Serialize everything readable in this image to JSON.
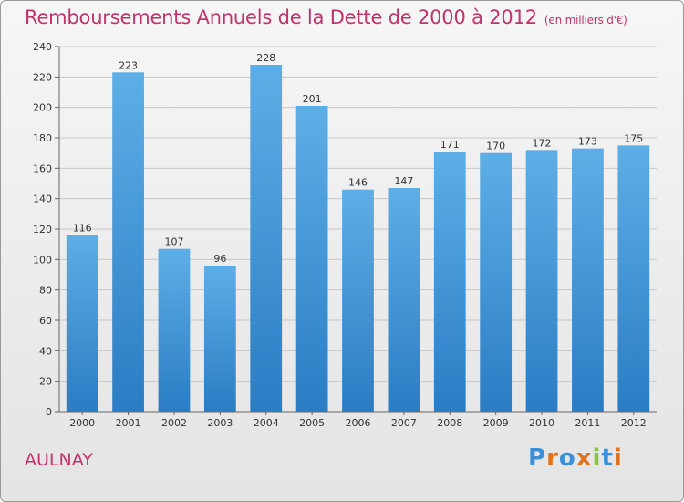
{
  "chart_data": {
    "type": "bar",
    "title": "Remboursements Annuels de la Dette de 2000 à 2012",
    "subtitle": "(en milliers d'€)",
    "categories": [
      "2000",
      "2001",
      "2002",
      "2003",
      "2004",
      "2005",
      "2006",
      "2007",
      "2008",
      "2009",
      "2010",
      "2011",
      "2012"
    ],
    "values": [
      116,
      223,
      107,
      96,
      228,
      201,
      146,
      147,
      171,
      170,
      172,
      173,
      175
    ],
    "ylim": [
      0,
      240
    ],
    "yticks": [
      0,
      20,
      40,
      60,
      80,
      100,
      120,
      140,
      160,
      180,
      200,
      220,
      240
    ],
    "grid": true,
    "xlabel": "",
    "ylabel": ""
  },
  "commune": "AULNAY",
  "logo": {
    "letters": [
      "P",
      "r",
      "o",
      "x",
      "i",
      "t",
      "i"
    ],
    "colors": [
      "#3a8fd8",
      "#e0721d",
      "#3a8fd8",
      "#e0721d",
      "#8cc63f",
      "#3a8fd8",
      "#e0721d"
    ]
  },
  "colors": {
    "bar_top": "#5eaee6",
    "bar_bottom": "#2a7dc4",
    "accent": "#c0336b"
  }
}
